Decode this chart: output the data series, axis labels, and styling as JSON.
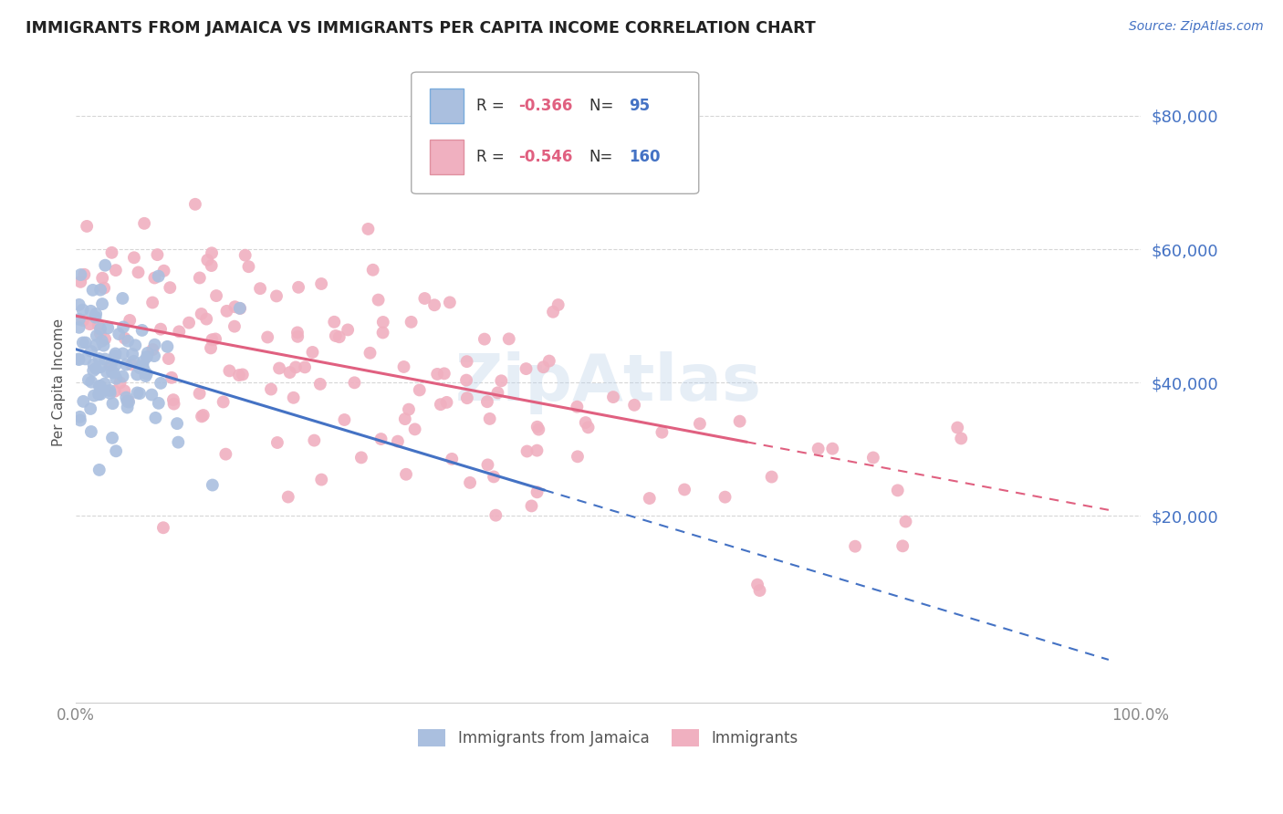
{
  "title": "IMMIGRANTS FROM JAMAICA VS IMMIGRANTS PER CAPITA INCOME CORRELATION CHART",
  "source": "Source: ZipAtlas.com",
  "ylabel": "Per Capita Income",
  "series1": {
    "label": "Immigrants from Jamaica",
    "color_scatter": "#aabfdf",
    "color_line": "#4472c4",
    "R": -0.366,
    "N": 95,
    "intercept": 45000,
    "slope": -48000
  },
  "series2": {
    "label": "Immigrants",
    "color_scatter": "#f0b0c0",
    "color_line": "#e06080",
    "R": -0.546,
    "N": 160,
    "intercept": 50000,
    "slope": -30000
  },
  "yticks": [
    20000,
    40000,
    60000,
    80000
  ],
  "ytick_labels": [
    "$20,000",
    "$40,000",
    "$60,000",
    "$80,000"
  ],
  "xtick_labels": [
    "0.0%",
    "100.0%"
  ],
  "xlim": [
    0,
    1
  ],
  "ylim": [
    -8000,
    88000
  ],
  "background_color": "#ffffff",
  "grid_color": "#cccccc",
  "watermark": "ZipAtlas",
  "watermark_color": "#b8d0e8"
}
